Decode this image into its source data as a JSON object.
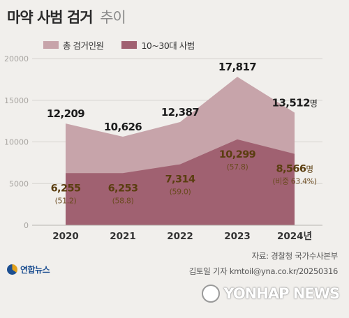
{
  "title": "마약 사범 검거",
  "title_suffix": "추이",
  "legend": [
    {
      "label": "총 검거인원",
      "color": "#c7a4aa"
    },
    {
      "label": "10~30대 사범",
      "color": "#a06171"
    }
  ],
  "chart_data": {
    "type": "area",
    "x": [
      "2020",
      "2021",
      "2022",
      "2023",
      "2024년"
    ],
    "ylim": [
      0,
      20000
    ],
    "yticks": [
      "0",
      "5000",
      "10000",
      "15000",
      "20000"
    ],
    "series": [
      {
        "name": "총 검거인원",
        "values": [
          12209,
          10626,
          12387,
          17817,
          13512
        ],
        "labels": [
          "12,209",
          "10,626",
          "12,387",
          "17,817",
          "13,512명"
        ],
        "color": "#c7a4aa"
      },
      {
        "name": "10~30대 사범",
        "values": [
          6255,
          6253,
          7314,
          10299,
          8566
        ],
        "labels": [
          "6,255",
          "6,253",
          "7,314",
          "10,299",
          "8,566명"
        ],
        "shares": [
          "(51.2)",
          "(58.8)",
          "(59.0)",
          "(57.8)",
          "(비중 63.4%)"
        ],
        "color": "#a06171"
      }
    ],
    "grid": true
  },
  "source": "자료: 경찰청 국가수사본부",
  "credit": "김토일 기자 kmtoil@yna.co.kr/20250316",
  "logo_left": "연합뉴스",
  "logo_right": "YONHAP NEWS"
}
